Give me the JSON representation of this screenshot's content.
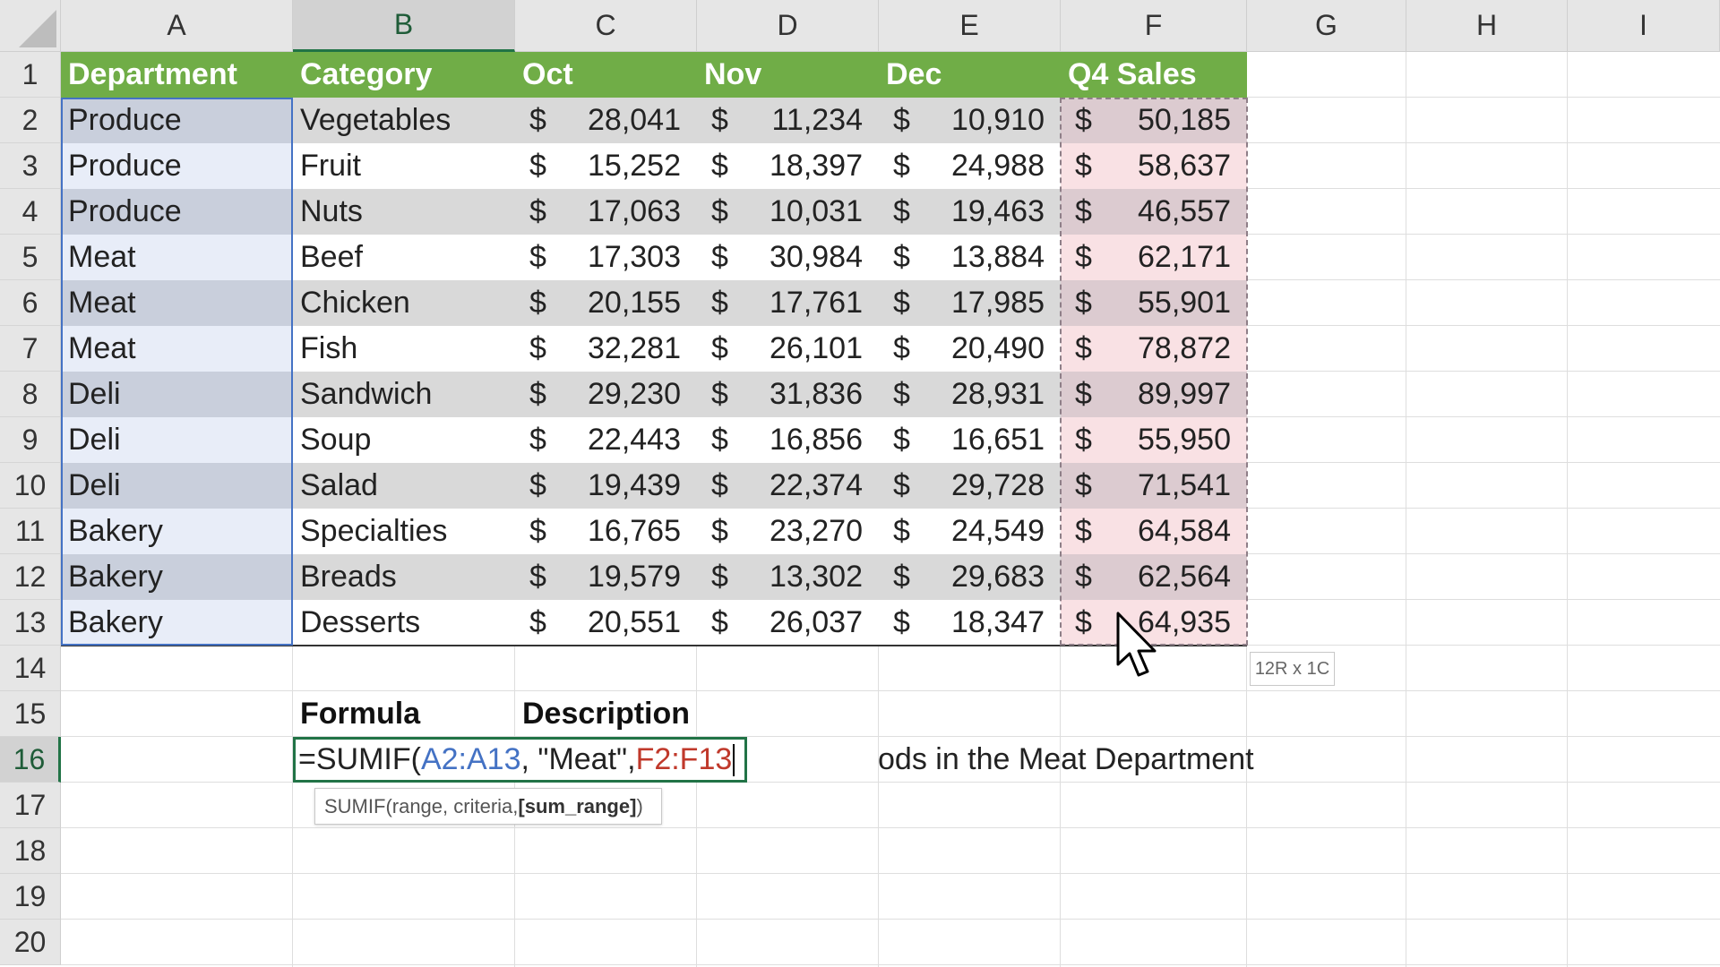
{
  "colors": {
    "header_green": "#70ad47",
    "header_text": "#ffffff",
    "row_band_gray": "#d9d9d9",
    "range_a_light": "#e8edf8",
    "range_a_dark": "#c9cfdc",
    "range_f_light": "#f9e1e4",
    "range_f_dark": "#dccbd0",
    "ref_range_a": "#4472c4",
    "ref_range_f": "#c0392b",
    "active_border": "#217346"
  },
  "columns": [
    "A",
    "B",
    "C",
    "D",
    "E",
    "F",
    "G",
    "H",
    "I"
  ],
  "rows": [
    "1",
    "2",
    "3",
    "4",
    "5",
    "6",
    "7",
    "8",
    "9",
    "10",
    "11",
    "12",
    "13",
    "14",
    "15",
    "16",
    "17",
    "18",
    "19",
    "20"
  ],
  "headers": {
    "department": "Department",
    "category": "Category",
    "oct": "Oct",
    "nov": "Nov",
    "dec": "Dec",
    "q4": "Q4 Sales"
  },
  "currency_symbol": "$",
  "table": [
    {
      "dept": "Produce",
      "cat": "Vegetables",
      "oct": "28,041",
      "nov": "11,234",
      "dec": "10,910",
      "q4": "50,185"
    },
    {
      "dept": "Produce",
      "cat": "Fruit",
      "oct": "15,252",
      "nov": "18,397",
      "dec": "24,988",
      "q4": "58,637"
    },
    {
      "dept": "Produce",
      "cat": "Nuts",
      "oct": "17,063",
      "nov": "10,031",
      "dec": "19,463",
      "q4": "46,557"
    },
    {
      "dept": "Meat",
      "cat": "Beef",
      "oct": "17,303",
      "nov": "30,984",
      "dec": "13,884",
      "q4": "62,171"
    },
    {
      "dept": "Meat",
      "cat": "Chicken",
      "oct": "20,155",
      "nov": "17,761",
      "dec": "17,985",
      "q4": "55,901"
    },
    {
      "dept": "Meat",
      "cat": "Fish",
      "oct": "32,281",
      "nov": "26,101",
      "dec": "20,490",
      "q4": "78,872"
    },
    {
      "dept": "Deli",
      "cat": "Sandwich",
      "oct": "29,230",
      "nov": "31,836",
      "dec": "28,931",
      "q4": "89,997"
    },
    {
      "dept": "Deli",
      "cat": "Soup",
      "oct": "22,443",
      "nov": "16,856",
      "dec": "16,651",
      "q4": "55,950"
    },
    {
      "dept": "Deli",
      "cat": "Salad",
      "oct": "19,439",
      "nov": "22,374",
      "dec": "29,728",
      "q4": "71,541"
    },
    {
      "dept": "Bakery",
      "cat": "Specialties",
      "oct": "16,765",
      "nov": "23,270",
      "dec": "24,549",
      "q4": "64,584"
    },
    {
      "dept": "Bakery",
      "cat": "Breads",
      "oct": "19,579",
      "nov": "13,302",
      "dec": "29,683",
      "q4": "62,564"
    },
    {
      "dept": "Bakery",
      "cat": "Desserts",
      "oct": "20,551",
      "nov": "26,037",
      "dec": "18,347",
      "q4": "64,935"
    }
  ],
  "lower": {
    "formula_label": "Formula",
    "description_label": "Description",
    "formula_parts": {
      "prefix": "=SUMIF(",
      "range": "A2:A13",
      "mid": ", \"Meat\",",
      "sum_range": "F2:F13"
    },
    "description_visible": "ods in the Meat Department",
    "tooltip": {
      "prefix": "SUMIF(range, criteria, ",
      "bold": "[sum_range]",
      "suffix": ")"
    },
    "selection_size": "12R x 1C"
  },
  "cursor": {
    "icon": "mouse-pointer-icon"
  }
}
